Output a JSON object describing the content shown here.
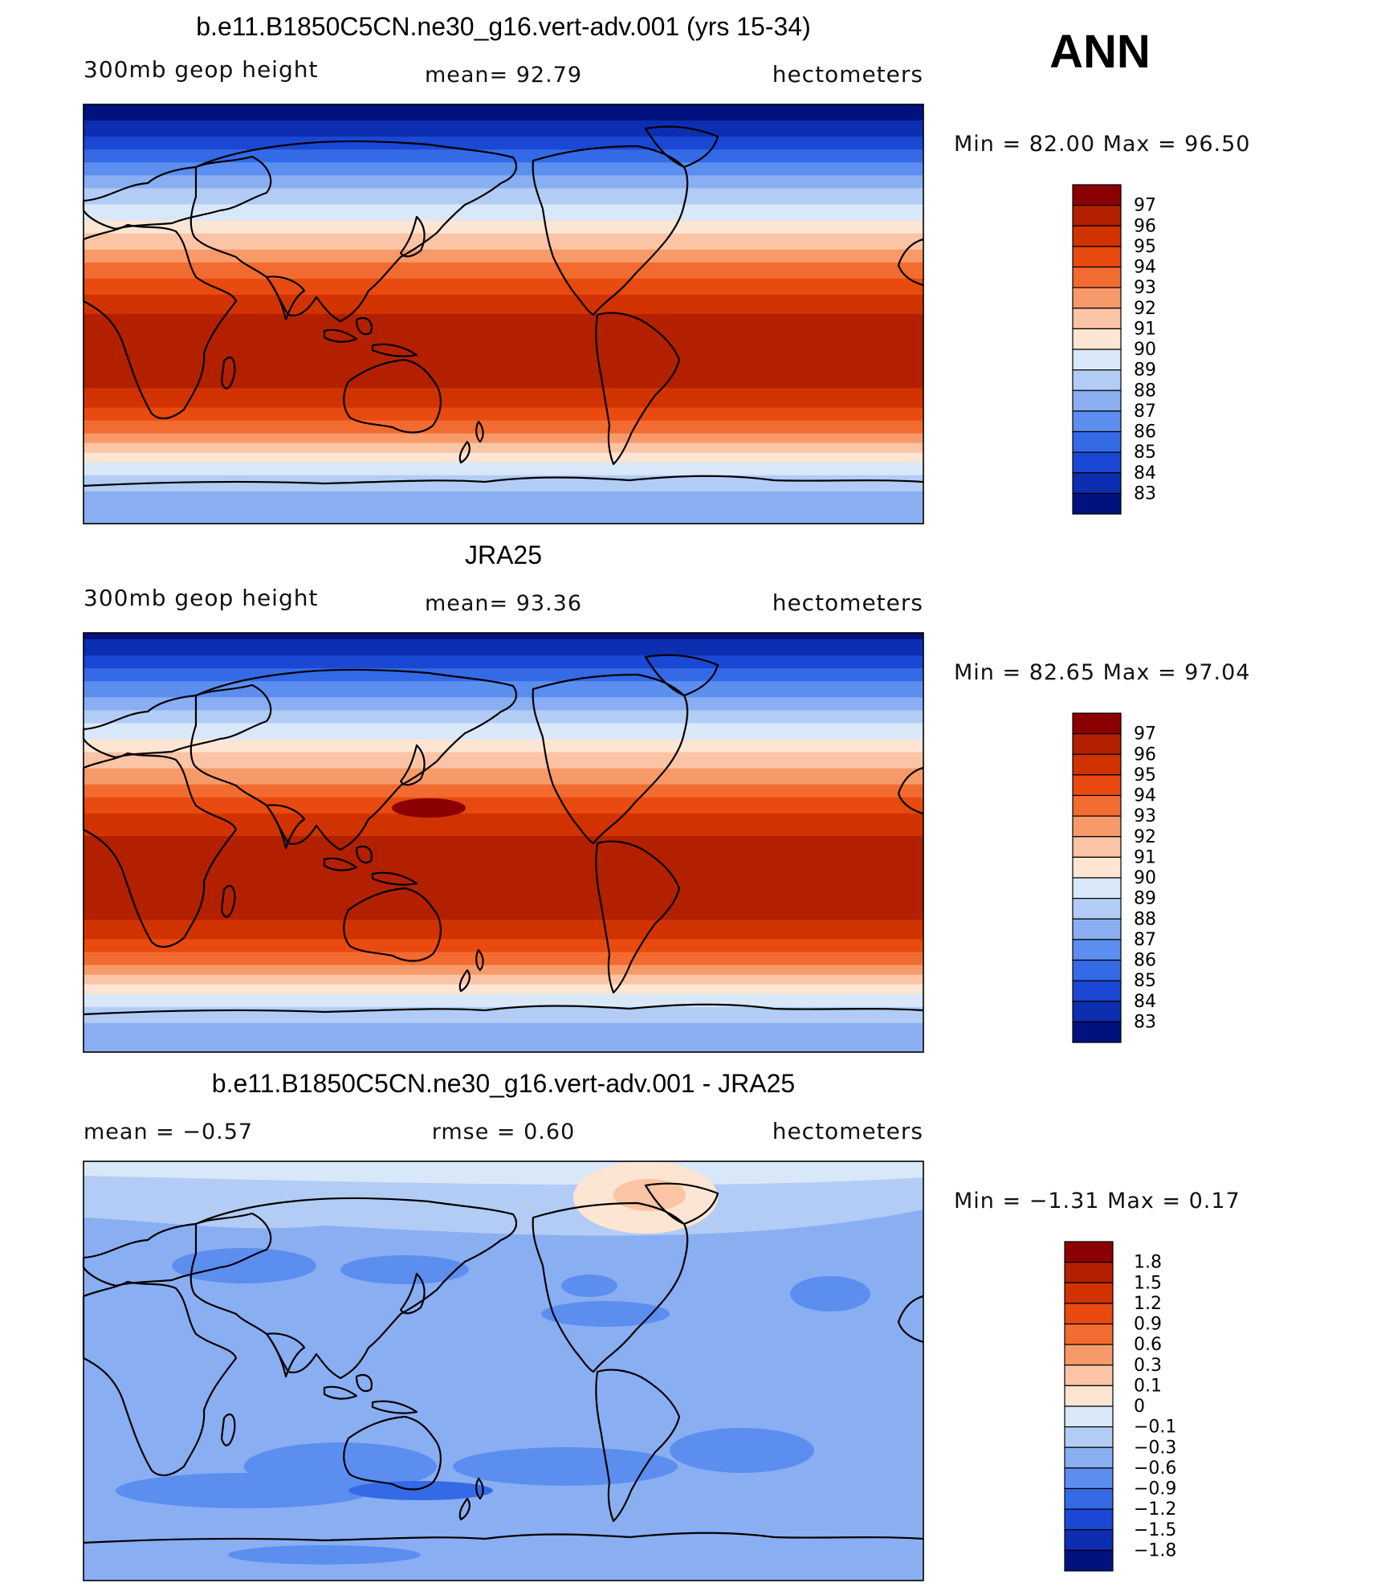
{
  "figure": {
    "season": "ANN"
  },
  "chart_data": [
    {
      "type": "heatmap",
      "title": "b.e11.B1850C5CN.ne30_g16.vert-adv.001 (yrs 15-34)",
      "variable": "300mb geop height",
      "mean_label": "mean=   92.79",
      "right_label": "hectometers",
      "minmax_label": "Min =    82.00  Max =    96.50",
      "min": 82.0,
      "max": 96.5,
      "mean": 92.79,
      "colorbar_ticks": [
        "97",
        "96",
        "95",
        "94",
        "93",
        "92",
        "91",
        "90",
        "89",
        "88",
        "87",
        "86",
        "85",
        "84",
        "83"
      ],
      "colorbar_colors": [
        "#8b0000",
        "#b22000",
        "#d13300",
        "#e84a10",
        "#f26b30",
        "#f79a6a",
        "#fbc4a5",
        "#fde5d3",
        "#d8e8f8",
        "#b2ccf5",
        "#8aaef2",
        "#5c8ef0",
        "#356ae6",
        "#1a48d4",
        "#0d2eb0",
        "#00127f"
      ],
      "lat_profile": [
        82.0,
        83.0,
        84.2,
        85.4,
        86.6,
        87.8,
        88.9,
        89.9,
        91.0,
        92.1,
        93.2,
        94.3,
        95.2,
        96.0,
        96.4,
        96.5,
        96.5,
        96.3,
        95.8,
        94.9,
        93.6,
        92.0,
        90.4,
        89.0,
        88.0,
        87.4,
        87.2
      ]
    },
    {
      "type": "heatmap",
      "title": "JRA25",
      "variable": "300mb geop height",
      "mean_label": "mean=   93.36",
      "right_label": "hectometers",
      "minmax_label": "Min =    82.65  Max =    97.04",
      "min": 82.65,
      "max": 97.04,
      "mean": 93.36,
      "colorbar_ticks": [
        "97",
        "96",
        "95",
        "94",
        "93",
        "92",
        "91",
        "90",
        "89",
        "88",
        "87",
        "86",
        "85",
        "84",
        "83"
      ],
      "colorbar_colors": [
        "#8b0000",
        "#b22000",
        "#d13300",
        "#e84a10",
        "#f26b30",
        "#f79a6a",
        "#fbc4a5",
        "#fde5d3",
        "#d8e8f8",
        "#b2ccf5",
        "#8aaef2",
        "#5c8ef0",
        "#356ae6",
        "#1a48d4",
        "#0d2eb0",
        "#00127f"
      ],
      "lat_profile": [
        82.65,
        83.6,
        84.8,
        86.0,
        87.2,
        88.4,
        89.5,
        90.5,
        91.6,
        92.7,
        93.8,
        94.8,
        95.6,
        96.3,
        96.6,
        96.7,
        96.6,
        96.4,
        95.9,
        95.1,
        93.9,
        92.3,
        90.8,
        89.4,
        88.2,
        87.6,
        87.4
      ]
    },
    {
      "type": "heatmap",
      "title": "b.e11.B1850C5CN.ne30_g16.vert-adv.001 - JRA25",
      "variable": "mean =   −0.57",
      "mean_label": "rmse =     0.60",
      "right_label": "hectometers",
      "minmax_label": "Min =   −1.31  Max =     0.17",
      "min": -1.31,
      "max": 0.17,
      "mean": -0.57,
      "rmse": 0.6,
      "colorbar_ticks": [
        "1.8",
        "1.5",
        "1.2",
        "0.9",
        "0.6",
        "0.3",
        "0.1",
        "0",
        "−0.1",
        "−0.3",
        "−0.6",
        "−0.9",
        "−1.2",
        "−1.5",
        "−1.8"
      ],
      "colorbar_colors": [
        "#8b0000",
        "#b22000",
        "#d13300",
        "#e84a10",
        "#f26b30",
        "#f79a6a",
        "#fbc4a5",
        "#fde5d3",
        "#d8e8f8",
        "#b2ccf5",
        "#8aaef2",
        "#5c8ef0",
        "#356ae6",
        "#1a48d4",
        "#0d2eb0",
        "#00127f"
      ]
    }
  ]
}
